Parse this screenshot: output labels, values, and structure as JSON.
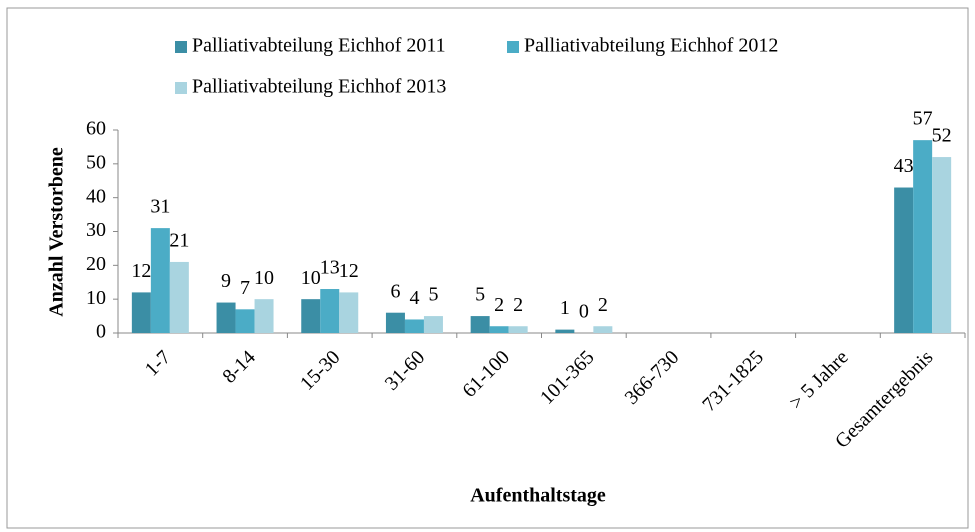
{
  "chart_data": {
    "type": "bar",
    "x_label": "Aufenthaltstage",
    "y_label": "Anzahl Verstorbene",
    "categories": [
      "1-7",
      "8-14",
      "15-30",
      "31-60",
      "61-100",
      "101-365",
      "366-730",
      "731-1825",
      "> 5 Jahre",
      "Gesamtergebnis"
    ],
    "series": [
      {
        "name": "Palliativabteilung Eichhof 2011",
        "color": "#3b8ea5",
        "values": [
          12,
          9,
          10,
          6,
          5,
          1,
          null,
          null,
          null,
          43
        ]
      },
      {
        "name": "Palliativabteilung Eichhof 2012",
        "color": "#4bacc6",
        "values": [
          31,
          7,
          13,
          4,
          2,
          0,
          null,
          null,
          null,
          57
        ]
      },
      {
        "name": "Palliativabteilung Eichhof 2013",
        "color": "#a9d4e0",
        "values": [
          21,
          10,
          12,
          5,
          2,
          2,
          null,
          null,
          null,
          52
        ]
      }
    ],
    "ylim": [
      0,
      60
    ],
    "yticks": [
      0,
      10,
      20,
      30,
      40,
      50,
      60
    ],
    "legend": "top"
  }
}
